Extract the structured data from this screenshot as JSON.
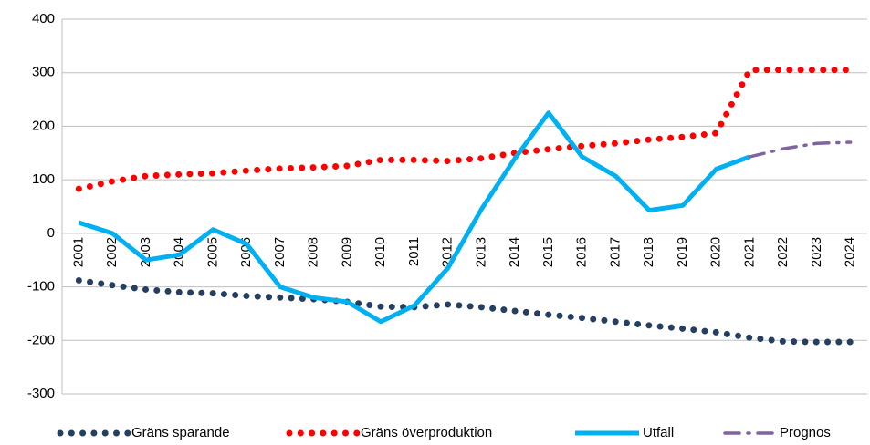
{
  "chart_data": {
    "type": "line",
    "categories": [
      "2001",
      "2002",
      "2003",
      "2004",
      "2005",
      "2006",
      "2007",
      "2008",
      "2009",
      "2010",
      "2011",
      "2012",
      "2013",
      "2014",
      "2015",
      "2016",
      "2017",
      "2018",
      "2019",
      "2020",
      "2021",
      "2022",
      "2023",
      "2024"
    ],
    "series": [
      {
        "name": "Gräns sparande",
        "color": "#243f60",
        "style": "dotted",
        "values": [
          -88,
          -97,
          -105,
          -110,
          -112,
          -117,
          -120,
          -123,
          -128,
          -137,
          -138,
          -133,
          -138,
          -145,
          -152,
          -158,
          -165,
          -172,
          -178,
          -185,
          -195,
          -202,
          -203,
          -203
        ]
      },
      {
        "name": "Gräns överproduktion",
        "color": "#ff0000",
        "style": "dotted",
        "values": [
          83,
          97,
          107,
          110,
          112,
          117,
          121,
          123,
          126,
          137,
          137,
          135,
          140,
          150,
          157,
          163,
          168,
          175,
          180,
          187,
          305,
          305,
          305,
          305
        ]
      },
      {
        "name": "Utfall",
        "color": "#00b0f0",
        "style": "solid",
        "values": [
          20,
          0,
          -50,
          -40,
          7,
          -20,
          -100,
          -120,
          -128,
          -165,
          -135,
          -65,
          45,
          140,
          225,
          143,
          107,
          43,
          52,
          120,
          143,
          null,
          null,
          null
        ]
      },
      {
        "name": "Prognos",
        "color": "#8064a2",
        "style": "dashdot",
        "values": [
          null,
          null,
          null,
          null,
          null,
          null,
          null,
          null,
          null,
          null,
          null,
          null,
          null,
          null,
          null,
          null,
          null,
          null,
          null,
          null,
          143,
          158,
          168,
          170
        ]
      }
    ],
    "ylim": [
      -300,
      400
    ],
    "yticks": [
      -300,
      -200,
      -100,
      0,
      100,
      200,
      300,
      400
    ],
    "grid": true,
    "legend": "bottom"
  }
}
